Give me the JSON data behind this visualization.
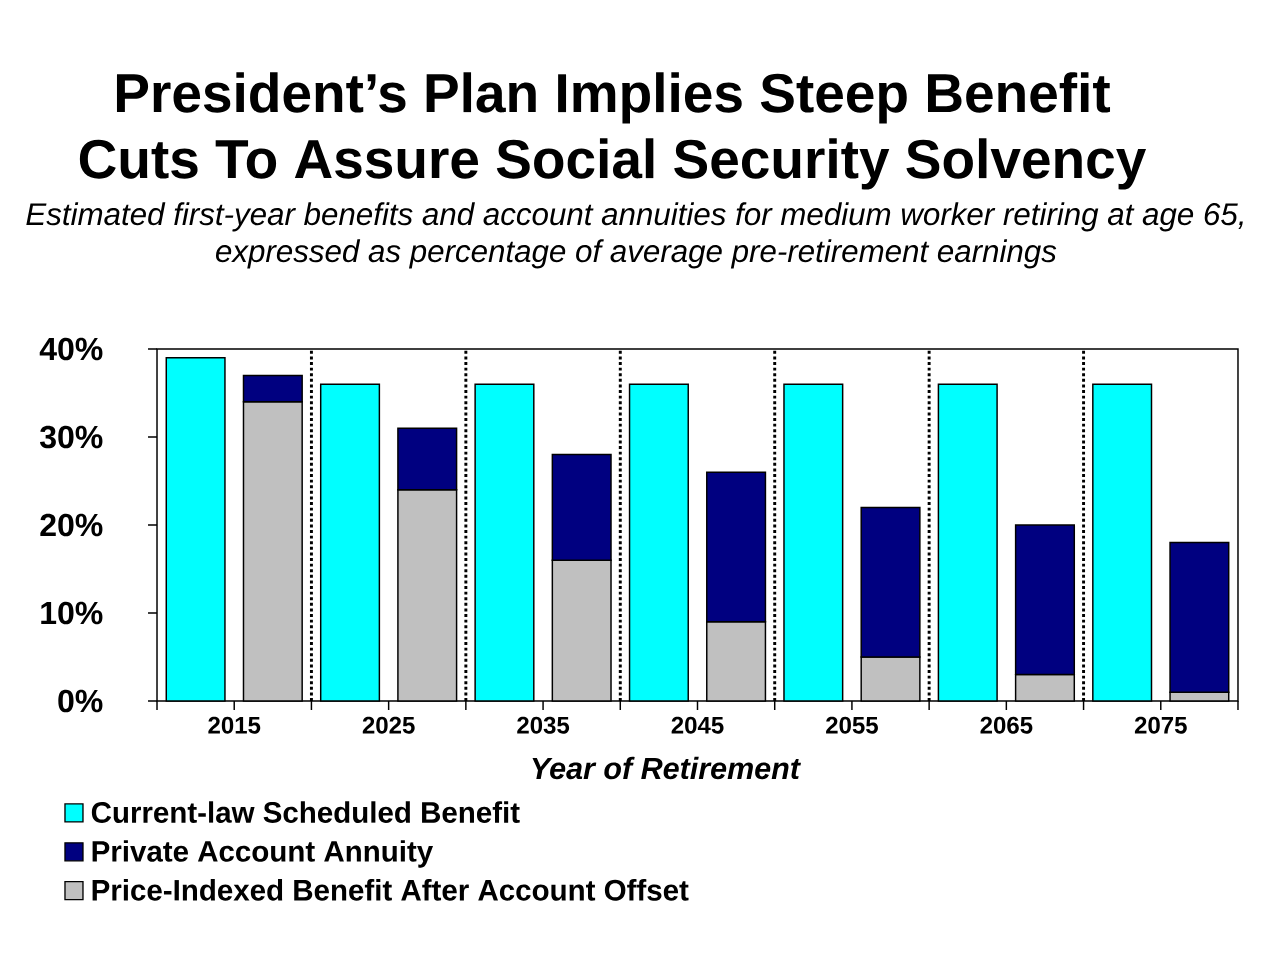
{
  "chart_data": {
    "type": "bar",
    "title": "President’s Plan Implies Steep Benefit Cuts To Assure Social Security Solvency",
    "subtitle": "Estimated first-year benefits and account annuities for medium worker retiring at age 65, expressed as percentage of average pre-retirement earnings",
    "xlabel": "Year of Retirement",
    "x": [
      2012.5,
      2017.5,
      2022.5,
      2027.5,
      2032.5,
      2037.5,
      2042.5,
      2047.5,
      2052.5,
      2057.5,
      2062.5,
      2067.5,
      2072.5,
      2077.5
    ],
    "series": [
      {
        "name": "Price-Indexed Benefit After Account Offset",
        "color": "#c0c0c0",
        "values": [
          null,
          34,
          null,
          24,
          null,
          16,
          null,
          9,
          null,
          5,
          null,
          3,
          null,
          1
        ]
      },
      {
        "name": "Private Account Annuity",
        "color": "#000080",
        "values": [
          null,
          3,
          null,
          7,
          null,
          12,
          null,
          17,
          null,
          17,
          null,
          17,
          null,
          17
        ]
      },
      {
        "name": "Current-law Scheduled Benefit",
        "color": "#00ffff",
        "values": [
          39,
          null,
          36,
          null,
          36,
          null,
          36,
          null,
          36,
          null,
          36,
          null,
          36,
          null
        ]
      }
    ],
    "stacked": true,
    "xlim": [
      2010,
      2080
    ],
    "xticks": [
      {
        "value": 2010,
        "label": null
      },
      2015,
      {
        "value": 2020,
        "label": null
      },
      2025,
      {
        "value": 2030,
        "label": null
      },
      2035,
      {
        "value": 2040,
        "label": null
      },
      2045,
      {
        "value": 2050,
        "label": null
      },
      2055,
      {
        "value": 2060,
        "label": null
      },
      2065,
      {
        "value": 2070,
        "label": null
      },
      2075,
      {
        "value": 2080,
        "label": null
      }
    ],
    "ylim": [
      0,
      40
    ],
    "yticks": [
      {
        "value": 0,
        "label": "0%"
      },
      {
        "value": 10,
        "label": "10%"
      },
      {
        "value": 20,
        "label": "20%"
      },
      {
        "value": 30,
        "label": "30%"
      },
      {
        "value": 40,
        "label": "40%"
      }
    ],
    "ref_lines": [
      {
        "axis": "x",
        "value": 2020,
        "color": "#000000",
        "line_style": "dotted"
      },
      {
        "axis": "x",
        "value": 2030,
        "color": "#000000",
        "line_style": "dotted"
      },
      {
        "axis": "x",
        "value": 2040,
        "color": "#000000",
        "line_style": "dotted"
      },
      {
        "axis": "x",
        "value": 2050,
        "color": "#000000",
        "line_style": "dotted"
      },
      {
        "axis": "x",
        "value": 2060,
        "color": "#000000",
        "line_style": "dotted"
      },
      {
        "axis": "x",
        "value": 2070,
        "color": "#000000",
        "line_style": "dotted"
      }
    ],
    "legend": "bottom"
  }
}
